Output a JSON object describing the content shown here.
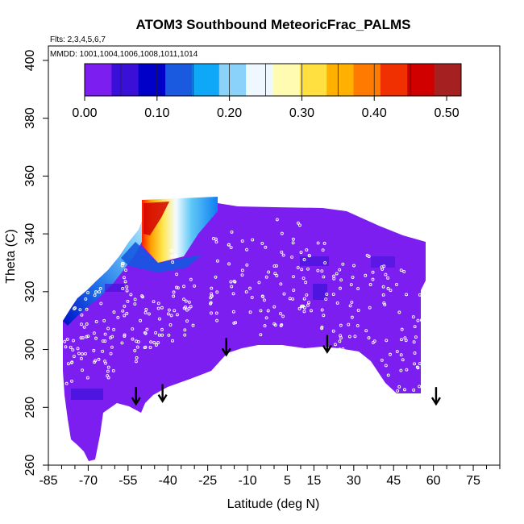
{
  "chart_data": {
    "type": "heatmap",
    "title": "ATOM3 Southbound MeteoricFrac_PALMS",
    "subtitle_flights": "Flts: 2,3,4,5,6,7",
    "subtitle_dates": "MMDD: 1001,1004,1006,1008,1011,1014",
    "xlabel": "Latitude (deg N)",
    "ylabel": "Theta (C)",
    "xlim": [
      -85,
      85
    ],
    "ylim": [
      260,
      405
    ],
    "x_ticks": [
      "-85",
      "-70",
      "-55",
      "-40",
      "-25",
      "-10",
      "5",
      "15",
      "30",
      "45",
      "60",
      "75"
    ],
    "y_ticks": [
      "260",
      "280",
      "300",
      "320",
      "340",
      "360",
      "380",
      "400"
    ],
    "colorbar": {
      "range": [
        0.0,
        0.52
      ],
      "tick_labels": [
        "0.00",
        "0.10",
        "0.20",
        "0.30",
        "0.40",
        "0.50"
      ],
      "colors": [
        "#7d1ef0",
        "#3a10d8",
        "#0000c8",
        "#1a5ae0",
        "#0fa8f8",
        "#8ad2fa",
        "#f0f8ff",
        "#fffbb0",
        "#ffe040",
        "#ffb000",
        "#ff7a00",
        "#f03000",
        "#d00000",
        "#a52020"
      ]
    },
    "field_summary": "Meteoric fraction mostly near 0.00-0.02 throughout domain; elevated values (0.1-0.45) in a band along the upper poleward edge near 50-40 S, theta 320-350 C",
    "descent_arrows_lat": [
      -52,
      -42,
      -18,
      20,
      61
    ],
    "descent_arrows_theta": [
      287,
      288,
      304,
      305,
      287
    ]
  }
}
